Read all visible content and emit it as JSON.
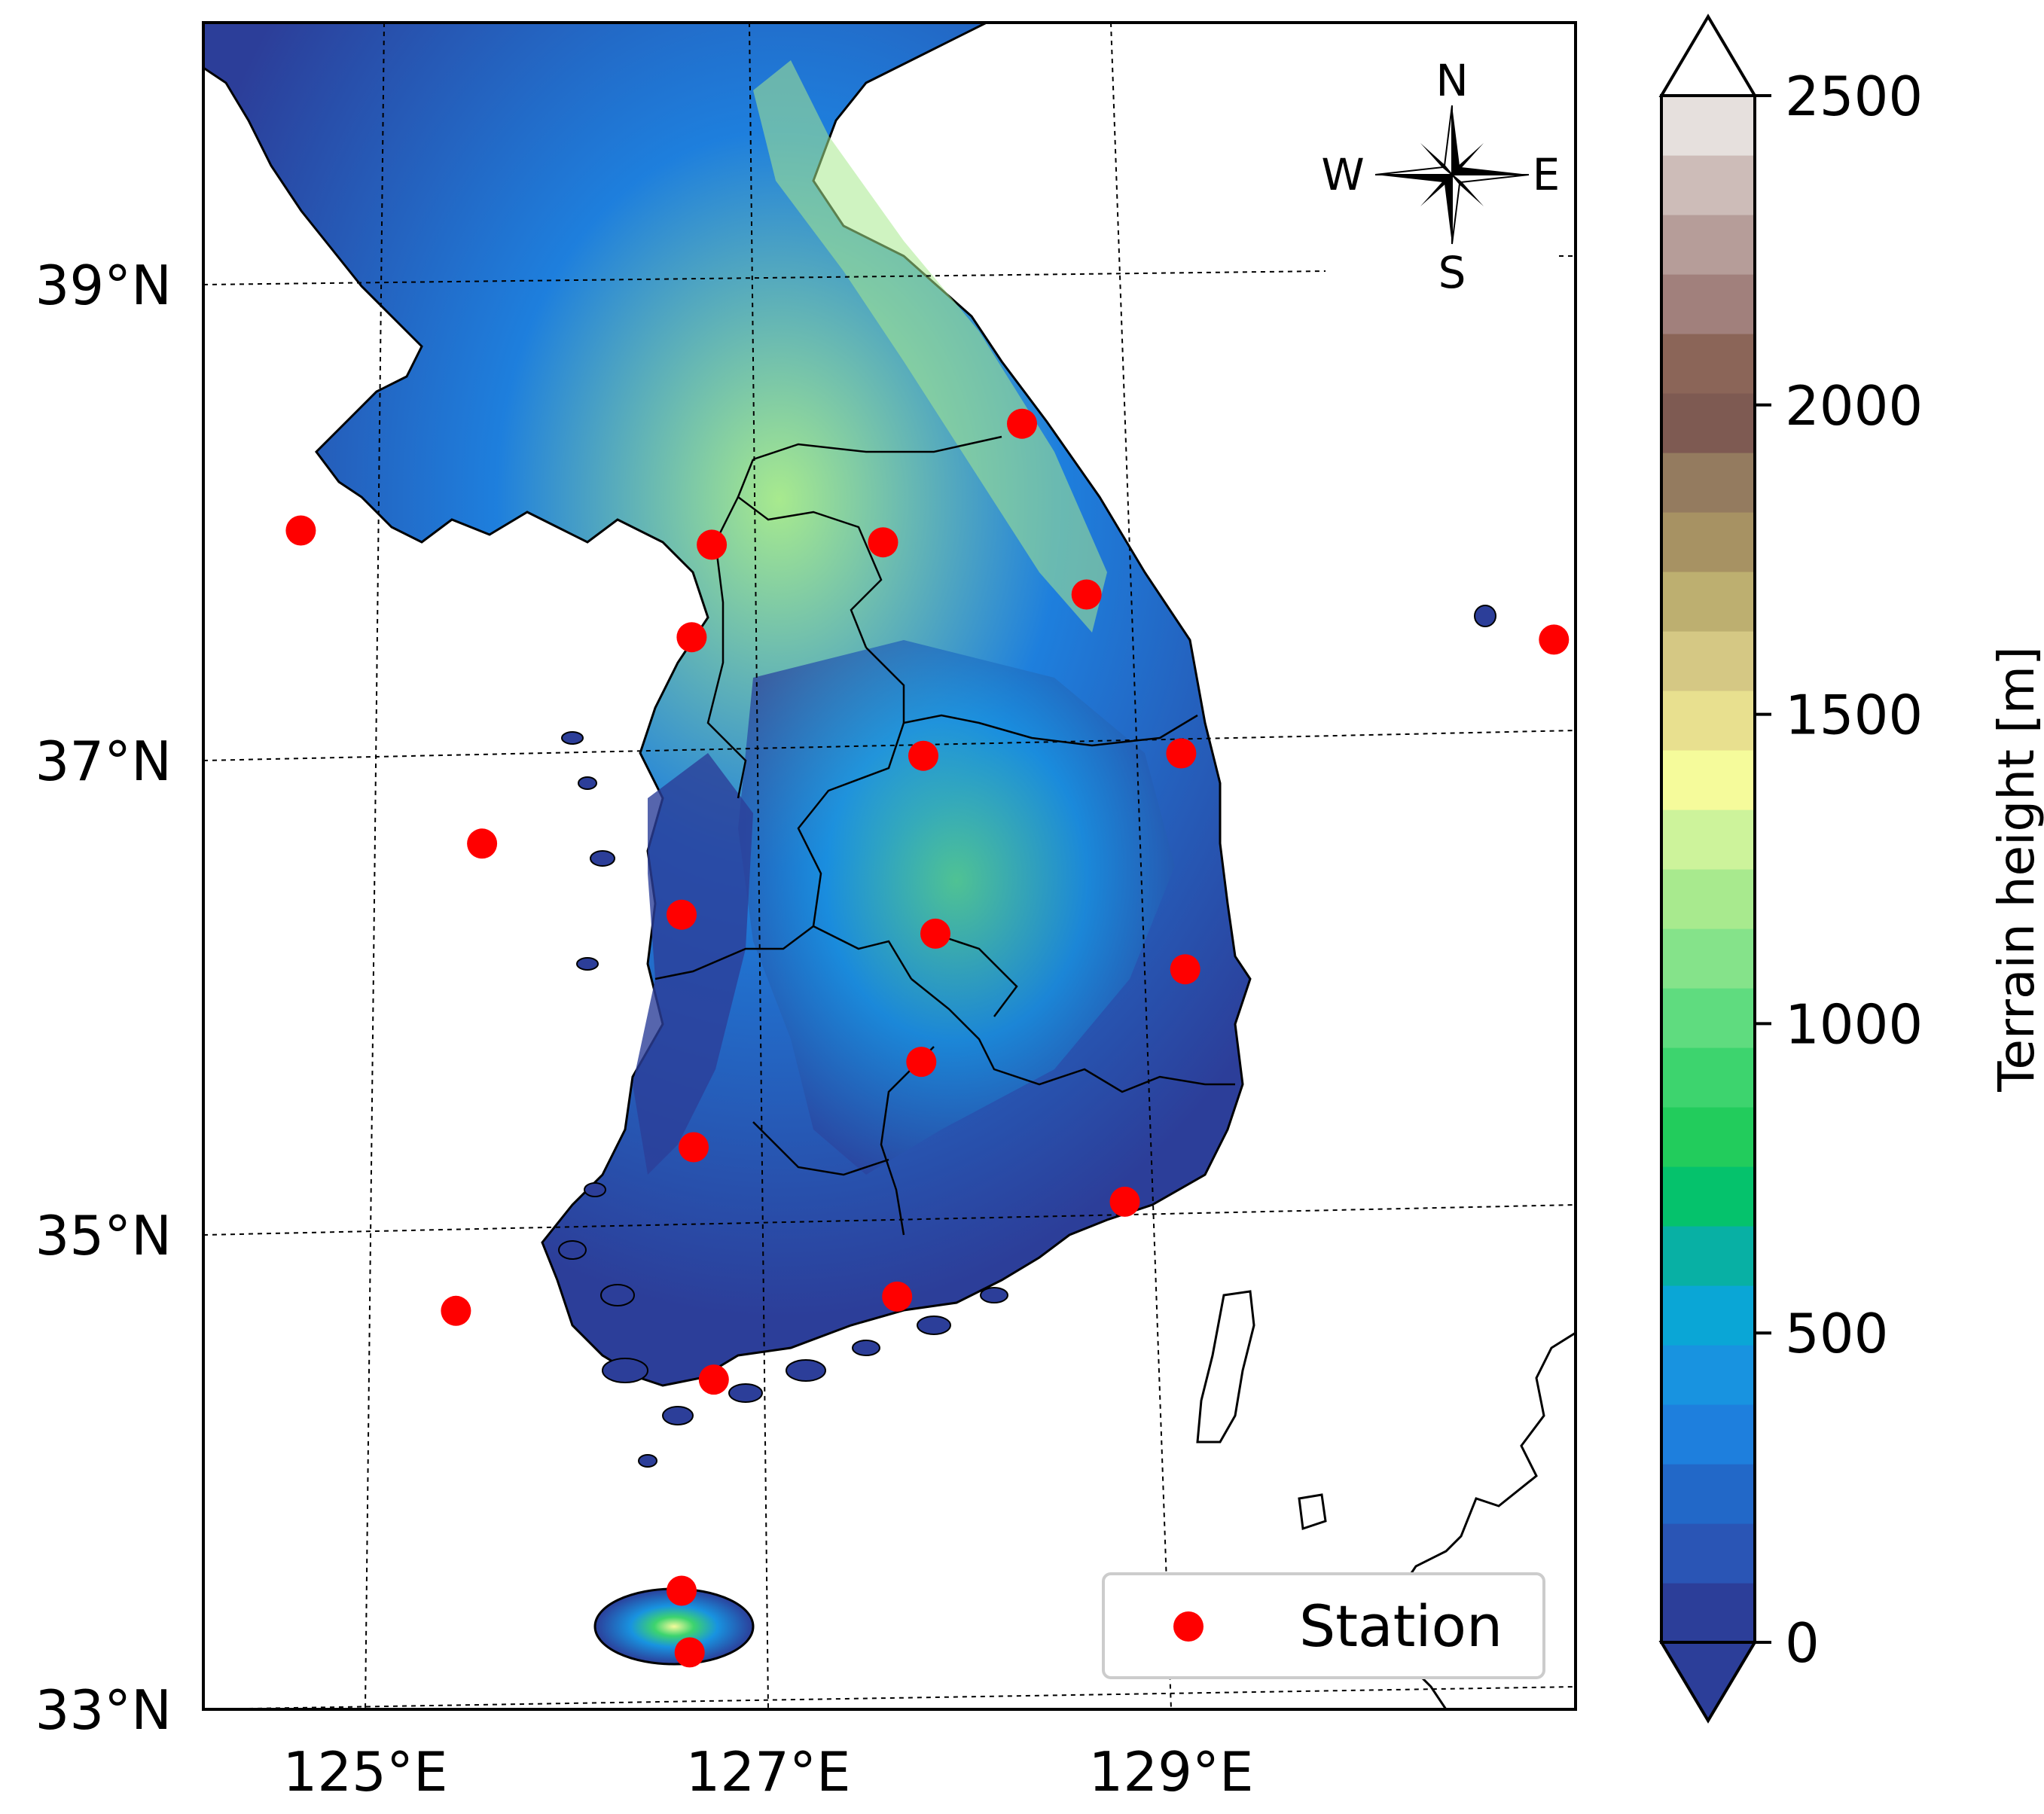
{
  "chart_data": {
    "type": "scatter",
    "title": "",
    "xlabel": "",
    "ylabel": "",
    "xlim": [
      124.3,
      130.8
    ],
    "ylim": [
      33.0,
      40.1
    ],
    "xticks": [
      "125°E",
      "127°E",
      "129°E"
    ],
    "yticks": [
      "33°N",
      "35°N",
      "37°N",
      "39°N"
    ],
    "grid": "dotted",
    "legend_placement": "bottom-right",
    "series": [
      {
        "name": "Station",
        "color": "#ff0000",
        "points": [
          {
            "lon": 124.68,
            "lat": 37.97
          },
          {
            "lon": 126.72,
            "lat": 37.91
          },
          {
            "lon": 127.57,
            "lat": 37.92
          },
          {
            "lon": 128.26,
            "lat": 38.42
          },
          {
            "lon": 128.58,
            "lat": 37.7
          },
          {
            "lon": 126.62,
            "lat": 37.52
          },
          {
            "lon": 130.9,
            "lat": 37.51
          },
          {
            "lon": 127.77,
            "lat": 37.02
          },
          {
            "lon": 129.05,
            "lat": 37.03
          },
          {
            "lon": 125.58,
            "lat": 36.65
          },
          {
            "lon": 126.57,
            "lat": 36.35
          },
          {
            "lon": 127.83,
            "lat": 36.27
          },
          {
            "lon": 129.07,
            "lat": 36.12
          },
          {
            "lon": 127.76,
            "lat": 35.73
          },
          {
            "lon": 126.63,
            "lat": 35.37
          },
          {
            "lon": 128.77,
            "lat": 35.14
          },
          {
            "lon": 127.64,
            "lat": 34.74
          },
          {
            "lon": 125.45,
            "lat": 34.68
          },
          {
            "lon": 126.73,
            "lat": 34.39
          },
          {
            "lon": 126.57,
            "lat": 33.5
          },
          {
            "lon": 126.61,
            "lat": 33.24
          }
        ]
      }
    ],
    "colorbar": {
      "label": "Terrain height [m]",
      "ticks": [
        "0",
        "500",
        "1000",
        "1500",
        "2000",
        "2500"
      ],
      "range": [
        0,
        2500
      ],
      "extend": "both",
      "colors": [
        "#2c3e99",
        "#2a55b5",
        "#2268c8",
        "#1e7fdd",
        "#1893e0",
        "#0aa6d6",
        "#08b0a4",
        "#05c26c",
        "#22cc5c",
        "#3dd46e",
        "#5fdc7f",
        "#85e38a",
        "#a8ea8e",
        "#cdf39b",
        "#f5fb9b",
        "#e8e08f",
        "#d5c884",
        "#bdaf70",
        "#a79263",
        "#947b5f",
        "#7e5a52",
        "#8b6558",
        "#a1807c",
        "#b69d99",
        "#cdbcb8",
        "#e6e0dd"
      ]
    },
    "compass": {
      "n": "N",
      "s": "S",
      "e": "E",
      "w": "W"
    }
  }
}
